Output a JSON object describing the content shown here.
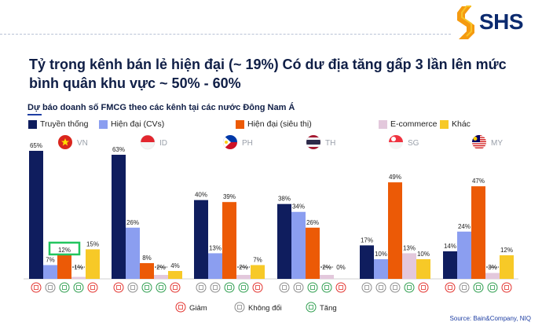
{
  "brand": {
    "name": "SHS"
  },
  "title": "Tỷ trọng kênh bán lẻ hiện đại (~ 19%) Có dư địa tăng gấp 3 lần lên mức bình quân khu vực ~ 50% - 60%",
  "subtitle": "Dự báo doanh số FMCG theo các kênh tại các nước Đông Nam Á",
  "source": "Source: Bain&Company, NIQ",
  "colors": {
    "traditional": "#0f1d5e",
    "modern_cvs": "#8b9ef0",
    "modern_super": "#ec5a06",
    "ecommerce": "#e3c8dc",
    "other": "#f7c927",
    "decrease": "#e3342f",
    "unchanged": "#8c8c8c",
    "increase": "#2f9e4f",
    "highlight": "#22c55e"
  },
  "indicator_legend": {
    "decrease": "Giảm",
    "unchanged": "Không đổi",
    "increase": "Tăng"
  },
  "chart_data": {
    "type": "bar",
    "title": "Dự báo doanh số FMCG theo các kênh tại các nước Đông Nam Á",
    "categories": [
      "VN",
      "ID",
      "PH",
      "TH",
      "SG",
      "MY"
    ],
    "unit": "%",
    "ylim": [
      0,
      65
    ],
    "series": [
      {
        "name": "Truyền thống",
        "values": [
          65,
          63,
          40,
          38,
          17,
          14
        ],
        "labels": [
          "65%",
          "63%",
          "40%",
          "38%",
          "17%",
          "14%"
        ]
      },
      {
        "name": "Hiện đại (CVs)",
        "values": [
          7,
          26,
          13,
          34,
          10,
          24
        ],
        "labels": [
          "7%",
          "26%",
          "13%",
          "34%",
          "10%",
          "24%"
        ]
      },
      {
        "name": "Hiện đại (siêu thị)",
        "values": [
          12,
          8,
          39,
          26,
          49,
          47
        ],
        "labels": [
          "12%",
          "8%",
          "39%",
          "26%",
          "49%",
          "47%"
        ]
      },
      {
        "name": "E-commerce",
        "values": [
          1,
          2,
          2,
          2,
          13,
          3
        ],
        "labels": [
          "1%",
          "2%",
          "2%",
          "2%",
          "13%",
          "3%"
        ]
      },
      {
        "name": "Khác",
        "values": [
          15,
          4,
          7,
          0,
          10,
          12
        ],
        "labels": [
          "15%",
          "4%",
          "7%",
          "0%",
          "10%",
          "12%"
        ]
      }
    ],
    "highlight": {
      "category": "VN",
      "series": "Hiện đại (siêu thị)"
    },
    "trend_indicators": [
      [
        "decrease",
        "unchanged",
        "increase",
        "increase",
        "decrease"
      ],
      [
        "decrease",
        "unchanged",
        "increase",
        "increase",
        "decrease"
      ],
      [
        "unchanged",
        "unchanged",
        "increase",
        "increase",
        "decrease"
      ],
      [
        "unchanged",
        "unchanged",
        "increase",
        "increase",
        "decrease"
      ],
      [
        "unchanged",
        "unchanged",
        "unchanged",
        "increase",
        "decrease"
      ],
      [
        "decrease",
        "unchanged",
        "increase",
        "increase",
        "decrease"
      ]
    ]
  }
}
